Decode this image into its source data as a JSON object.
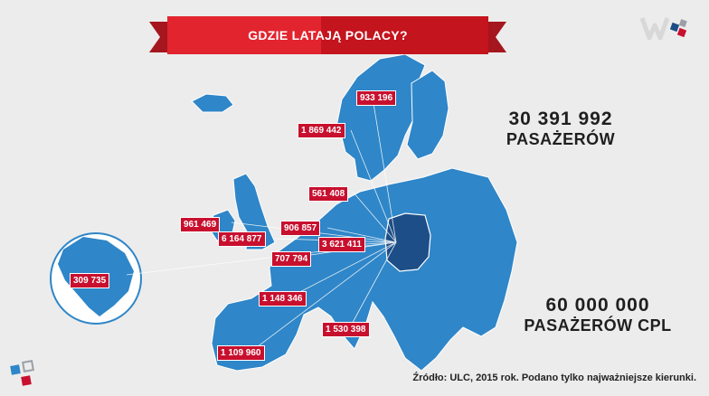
{
  "title": "GDZIE LATAJĄ POLACY?",
  "stat_total": {
    "value": "30 391 992",
    "unit": "PASAŻERÓW"
  },
  "stat_cpl": {
    "value": "60 000 000",
    "unit": "PASAŻERÓW CPL"
  },
  "source": "Źródło: ULC, 2015 rok. Podano tylko najważniejsze kierunki.",
  "destinations": [
    {
      "id": "norway",
      "label": "933 196"
    },
    {
      "id": "sweden-norway",
      "label": "1 869 442"
    },
    {
      "id": "denmark",
      "label": "561 408"
    },
    {
      "id": "ireland",
      "label": "961 469"
    },
    {
      "id": "uk",
      "label": "6 164 877"
    },
    {
      "id": "netherlands",
      "label": "906 857"
    },
    {
      "id": "germany",
      "label": "3 621 411"
    },
    {
      "id": "france",
      "label": "707 794"
    },
    {
      "id": "usa",
      "label": "309 735"
    },
    {
      "id": "spain-north",
      "label": "1 148  346"
    },
    {
      "id": "italy",
      "label": "1 530 398"
    },
    {
      "id": "spain",
      "label": "1 109  960"
    }
  ],
  "colors": {
    "land": "#2f86c8",
    "poland": "#1d4e87",
    "banner": "#e2242f",
    "label": "#c8102e",
    "background": "#ececec"
  }
}
